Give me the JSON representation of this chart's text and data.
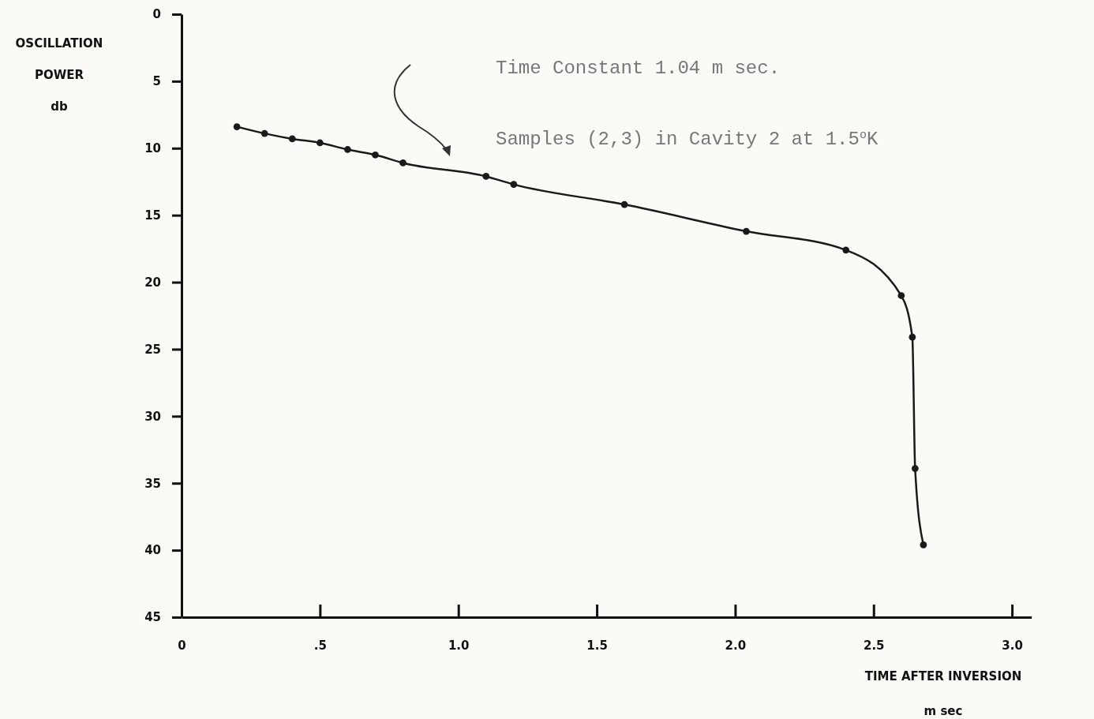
{
  "chart_data": {
    "type": "line",
    "xlabel": "TIME AFTER INVERSION\nm sec",
    "ylabel": "OSCILLATION\nPOWER\ndb",
    "annotations": [
      "Time Constant  1.04 m sec.",
      "Samples (2,3) in Cavity 2 at 1.5$^{o}$K"
    ],
    "x": [
      0.2,
      0.3,
      0.4,
      0.5,
      0.6,
      0.7,
      0.8,
      1.1,
      1.2,
      1.6,
      2.04,
      2.4,
      2.6,
      2.64,
      2.65,
      2.68
    ],
    "series": [
      {
        "color": "#1a1a1a",
        "values": [
          8.4,
          8.9,
          9.3,
          9.6,
          10.1,
          10.5,
          11.1,
          12.1,
          12.7,
          14.2,
          16.2,
          17.6,
          21.0,
          24.1,
          33.9,
          39.6
        ]
      }
    ],
    "xlim": [
      0,
      3.07
    ],
    "ylim": [
      45,
      0
    ],
    "xticks": [
      0,
      {
        "value": 0.5,
        "label": ".5"
      },
      {
        "value": 1,
        "label": "1.0"
      },
      {
        "value": 1.5,
        "label": "1.5"
      },
      {
        "value": 2,
        "label": "2.0"
      },
      {
        "value": 2.5,
        "label": "2.5"
      },
      {
        "value": 3,
        "label": "3.0"
      }
    ],
    "yticks": [
      0,
      5,
      10,
      15,
      20,
      25,
      30,
      35,
      40,
      45
    ],
    "marker": "circle",
    "line_style": "solid",
    "grid": false
  }
}
